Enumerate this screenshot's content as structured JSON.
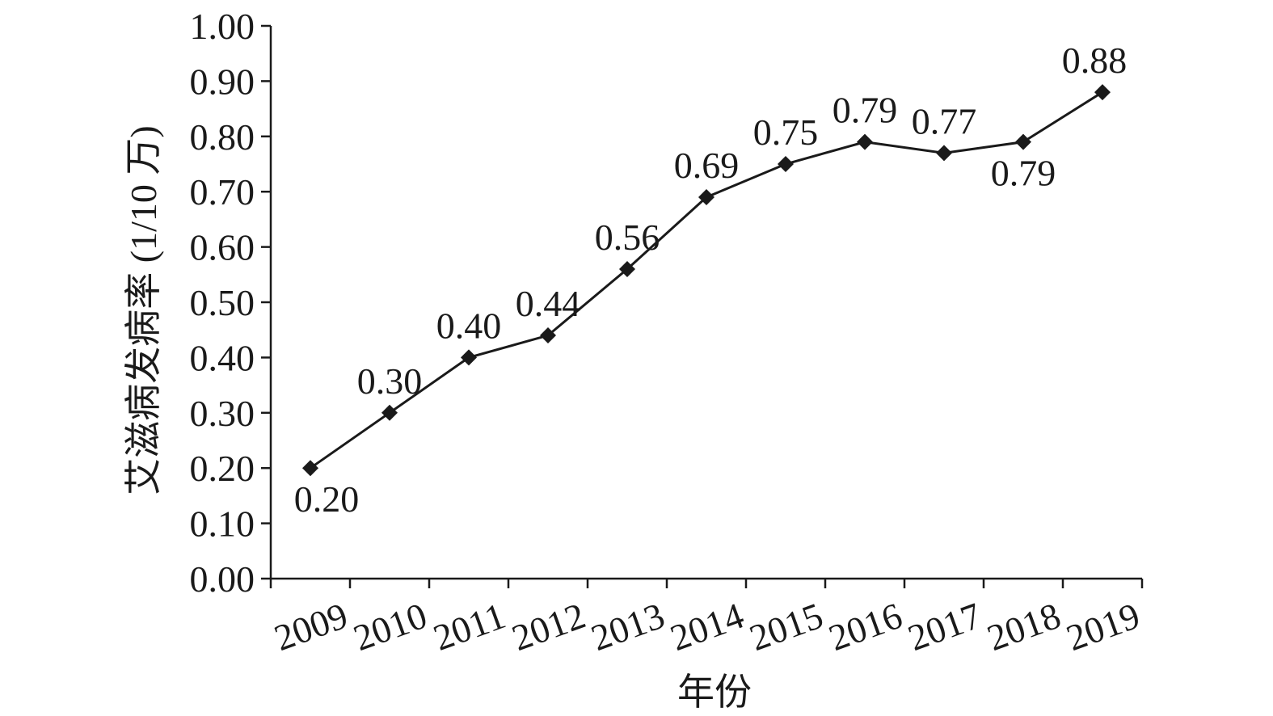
{
  "chart_data": {
    "type": "line",
    "title": "",
    "xlabel": "年份",
    "ylabel": "艾滋病发病率 (1/10 万)",
    "categories": [
      "2009",
      "2010",
      "2011",
      "2012",
      "2013",
      "2014",
      "2015",
      "2016",
      "2017",
      "2018",
      "2019"
    ],
    "series": [
      {
        "values": [
          0.2,
          0.3,
          0.4,
          0.44,
          0.56,
          0.69,
          0.75,
          0.79,
          0.77,
          0.79,
          0.88
        ],
        "data_labels": [
          "0.20",
          "0.30",
          "0.40",
          "0.44",
          "0.56",
          "0.69",
          "0.75",
          "0.79",
          "0.77",
          "0.79",
          "0.88"
        ]
      }
    ],
    "ylim": [
      0,
      1
    ],
    "yticks": [
      "0.00",
      "0.10",
      "0.20",
      "0.30",
      "0.40",
      "0.50",
      "0.60",
      "0.70",
      "0.80",
      "0.90",
      "1.00"
    ],
    "grid": false,
    "legend": "none",
    "marker": "diamond",
    "colors": {
      "line": "#1a1a1a",
      "marker": "#1a1a1a"
    }
  }
}
